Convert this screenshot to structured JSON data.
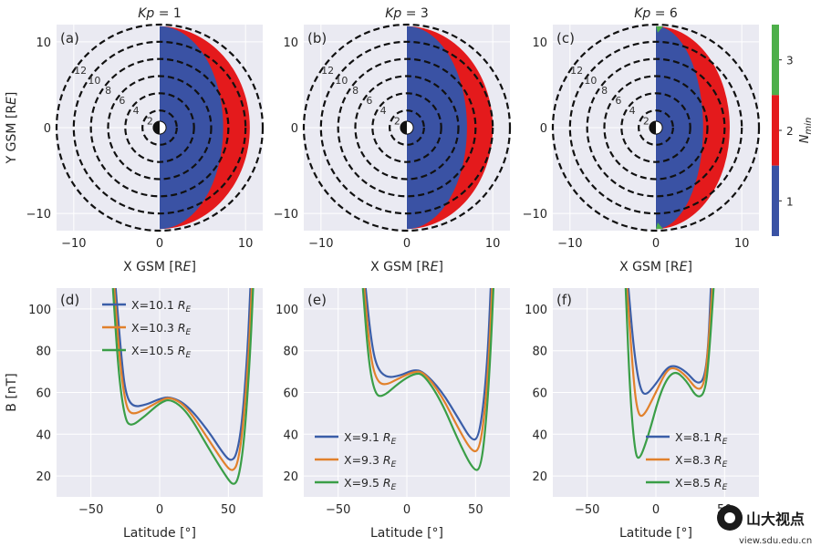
{
  "colors": {
    "panel_bg": "#eaeaf2",
    "blue": "#3a52a4",
    "red": "#e41a1c",
    "green": "#4daf4a",
    "line_blue": "#3b5ea8",
    "line_orange": "#e1812c",
    "line_green": "#3a9e47"
  },
  "colorbar": {
    "label": "N_min",
    "ticks": [
      "1",
      "2",
      "3"
    ],
    "range": [
      0.5,
      3.5
    ]
  },
  "watermark": {
    "brand": "山大视点",
    "url": "view.sdu.edu.cn"
  },
  "chart_data": [
    {
      "type": "heatmap",
      "label": "(a)",
      "title_var": "Kp",
      "title_value": "= 1",
      "xlabel": "X GSM [R",
      "xlabel_sub": "E",
      "ylabel": "Y GSM [R",
      "ylabel_sub": "E",
      "xticks": [
        "−10",
        "0",
        "10"
      ],
      "yticks": [
        "10",
        "0",
        "−10"
      ],
      "xlim": [
        -12,
        12
      ],
      "ylim": [
        -12,
        12
      ],
      "circle_labels": [
        "2",
        "4",
        "6",
        "8",
        "10",
        "12"
      ],
      "regions": {
        "blue_outer_r": 7.4,
        "red_outer_r": 10.5,
        "green_present": false
      }
    },
    {
      "type": "heatmap",
      "label": "(b)",
      "title_var": "Kp",
      "title_value": "= 3",
      "xticks": [
        "−10",
        "0",
        "10"
      ],
      "yticks": [
        "10",
        "0",
        "−10"
      ],
      "xlim": [
        -12,
        12
      ],
      "ylim": [
        -12,
        12
      ],
      "circle_labels": [
        "2",
        "4",
        "6",
        "8",
        "10",
        "12"
      ],
      "regions": {
        "blue_outer_r": 7.0,
        "red_outer_r": 10.0,
        "green_present": false
      }
    },
    {
      "type": "heatmap",
      "label": "(c)",
      "title_var": "Kp",
      "title_value": "= 6",
      "xticks": [
        "−10",
        "0",
        "10"
      ],
      "yticks": [
        "10",
        "0",
        "−10"
      ],
      "xlim": [
        -12,
        12
      ],
      "ylim": [
        -12,
        12
      ],
      "circle_labels": [
        "2",
        "4",
        "6",
        "8",
        "10",
        "12"
      ],
      "regions": {
        "blue_outer_r": 5.5,
        "red_outer_r": 8.6,
        "green_present": true
      }
    },
    {
      "type": "line",
      "label": "(d)",
      "ylabel": "B [nT]",
      "xlabel": "Latitude [°]",
      "xticks": [
        "−50",
        "0",
        "50"
      ],
      "yticks": [
        "20",
        "40",
        "60",
        "80",
        "100"
      ],
      "xlim": [
        -75,
        75
      ],
      "ylim": [
        10,
        110
      ],
      "legend_position": "upper-left",
      "series": [
        {
          "name": "X=10.1",
          "unit": "R",
          "unit_sub": "E",
          "points": [
            [
              -32,
              110
            ],
            [
              -28,
              78
            ],
            [
              -25,
              60
            ],
            [
              -20,
              53
            ],
            [
              -10,
              54
            ],
            [
              0,
              57
            ],
            [
              8,
              58
            ],
            [
              20,
              54
            ],
            [
              35,
              42
            ],
            [
              47,
              30
            ],
            [
              52,
              27
            ],
            [
              56,
              30
            ],
            [
              60,
              45
            ],
            [
              64,
              80
            ],
            [
              66,
              110
            ]
          ]
        },
        {
          "name": "X=10.3",
          "unit": "R",
          "unit_sub": "E",
          "points": [
            [
              -33,
              110
            ],
            [
              -29,
              75
            ],
            [
              -25,
              55
            ],
            [
              -21,
              49
            ],
            [
              -10,
              52
            ],
            [
              0,
              56
            ],
            [
              8,
              58
            ],
            [
              20,
              53
            ],
            [
              35,
              38
            ],
            [
              48,
              25
            ],
            [
              53,
              22
            ],
            [
              57,
              26
            ],
            [
              61,
              45
            ],
            [
              65,
              80
            ],
            [
              67,
              110
            ]
          ]
        },
        {
          "name": "X=10.5",
          "unit": "R",
          "unit_sub": "E",
          "points": [
            [
              -34,
              110
            ],
            [
              -30,
              70
            ],
            [
              -26,
              50
            ],
            [
              -22,
              43
            ],
            [
              -10,
              49
            ],
            [
              0,
              55
            ],
            [
              8,
              57
            ],
            [
              20,
              51
            ],
            [
              35,
              34
            ],
            [
              48,
              20
            ],
            [
              54,
              15
            ],
            [
              58,
              20
            ],
            [
              62,
              40
            ],
            [
              66,
              80
            ],
            [
              68,
              110
            ]
          ]
        }
      ]
    },
    {
      "type": "line",
      "label": "(e)",
      "xticks": [
        "−50",
        "0",
        "50"
      ],
      "yticks": [
        "20",
        "40",
        "60",
        "80",
        "100"
      ],
      "xlim": [
        -75,
        75
      ],
      "ylim": [
        10,
        110
      ],
      "legend_position": "lower-left",
      "series": [
        {
          "name": "X=9.1",
          "unit": "R",
          "unit_sub": "E",
          "points": [
            [
              -30,
              110
            ],
            [
              -26,
              85
            ],
            [
              -22,
              72
            ],
            [
              -15,
              67
            ],
            [
              -5,
              68
            ],
            [
              5,
              71
            ],
            [
              12,
              70
            ],
            [
              25,
              61
            ],
            [
              38,
              47
            ],
            [
              47,
              37
            ],
            [
              52,
              38
            ],
            [
              56,
              55
            ],
            [
              59,
              80
            ],
            [
              61,
              110
            ]
          ]
        },
        {
          "name": "X=9.3",
          "unit": "R",
          "unit_sub": "E",
          "points": [
            [
              -31,
              110
            ],
            [
              -27,
              80
            ],
            [
              -23,
              67
            ],
            [
              -17,
              63
            ],
            [
              -5,
              67
            ],
            [
              5,
              70
            ],
            [
              12,
              70
            ],
            [
              25,
              59
            ],
            [
              38,
              42
            ],
            [
              48,
              31
            ],
            [
              53,
              33
            ],
            [
              57,
              52
            ],
            [
              60,
              80
            ],
            [
              62,
              110
            ]
          ]
        },
        {
          "name": "X=9.5",
          "unit": "R",
          "unit_sub": "E",
          "points": [
            [
              -32,
              110
            ],
            [
              -28,
              76
            ],
            [
              -24,
              61
            ],
            [
              -19,
              57
            ],
            [
              -5,
              65
            ],
            [
              5,
              69
            ],
            [
              12,
              69
            ],
            [
              25,
              56
            ],
            [
              38,
              36
            ],
            [
              49,
              22
            ],
            [
              54,
              24
            ],
            [
              58,
              48
            ],
            [
              61,
              80
            ],
            [
              63,
              110
            ]
          ]
        }
      ]
    },
    {
      "type": "line",
      "label": "(f)",
      "xticks": [
        "−50",
        "0",
        "50"
      ],
      "yticks": [
        "20",
        "40",
        "60",
        "80",
        "100"
      ],
      "xlim": [
        -75,
        75
      ],
      "ylim": [
        10,
        110
      ],
      "legend_position": "lower-right",
      "series": [
        {
          "name": "X=8.1",
          "unit": "R",
          "unit_sub": "E",
          "points": [
            [
              -20,
              110
            ],
            [
              -16,
              80
            ],
            [
              -12,
              63
            ],
            [
              -8,
              58
            ],
            [
              0,
              64
            ],
            [
              8,
              72
            ],
            [
              14,
              73
            ],
            [
              22,
              70
            ],
            [
              30,
              64
            ],
            [
              35,
              66
            ],
            [
              38,
              80
            ],
            [
              40,
              110
            ]
          ]
        },
        {
          "name": "X=8.3",
          "unit": "R",
          "unit_sub": "E",
          "points": [
            [
              -21,
              110
            ],
            [
              -17,
              72
            ],
            [
              -14,
              52
            ],
            [
              -10,
              47
            ],
            [
              0,
              60
            ],
            [
              8,
              71
            ],
            [
              14,
              72
            ],
            [
              22,
              68
            ],
            [
              30,
              61
            ],
            [
              35,
              63
            ],
            [
              38,
              80
            ],
            [
              41,
              110
            ]
          ]
        },
        {
          "name": "X=8.5",
          "unit": "R",
          "unit_sub": "E",
          "points": [
            [
              -22,
              110
            ],
            [
              -19,
              62
            ],
            [
              -16,
              36
            ],
            [
              -13,
              26
            ],
            [
              -6,
              38
            ],
            [
              4,
              62
            ],
            [
              13,
              71
            ],
            [
              22,
              66
            ],
            [
              30,
              57
            ],
            [
              36,
              60
            ],
            [
              39,
              80
            ],
            [
              42,
              110
            ]
          ]
        }
      ]
    }
  ]
}
